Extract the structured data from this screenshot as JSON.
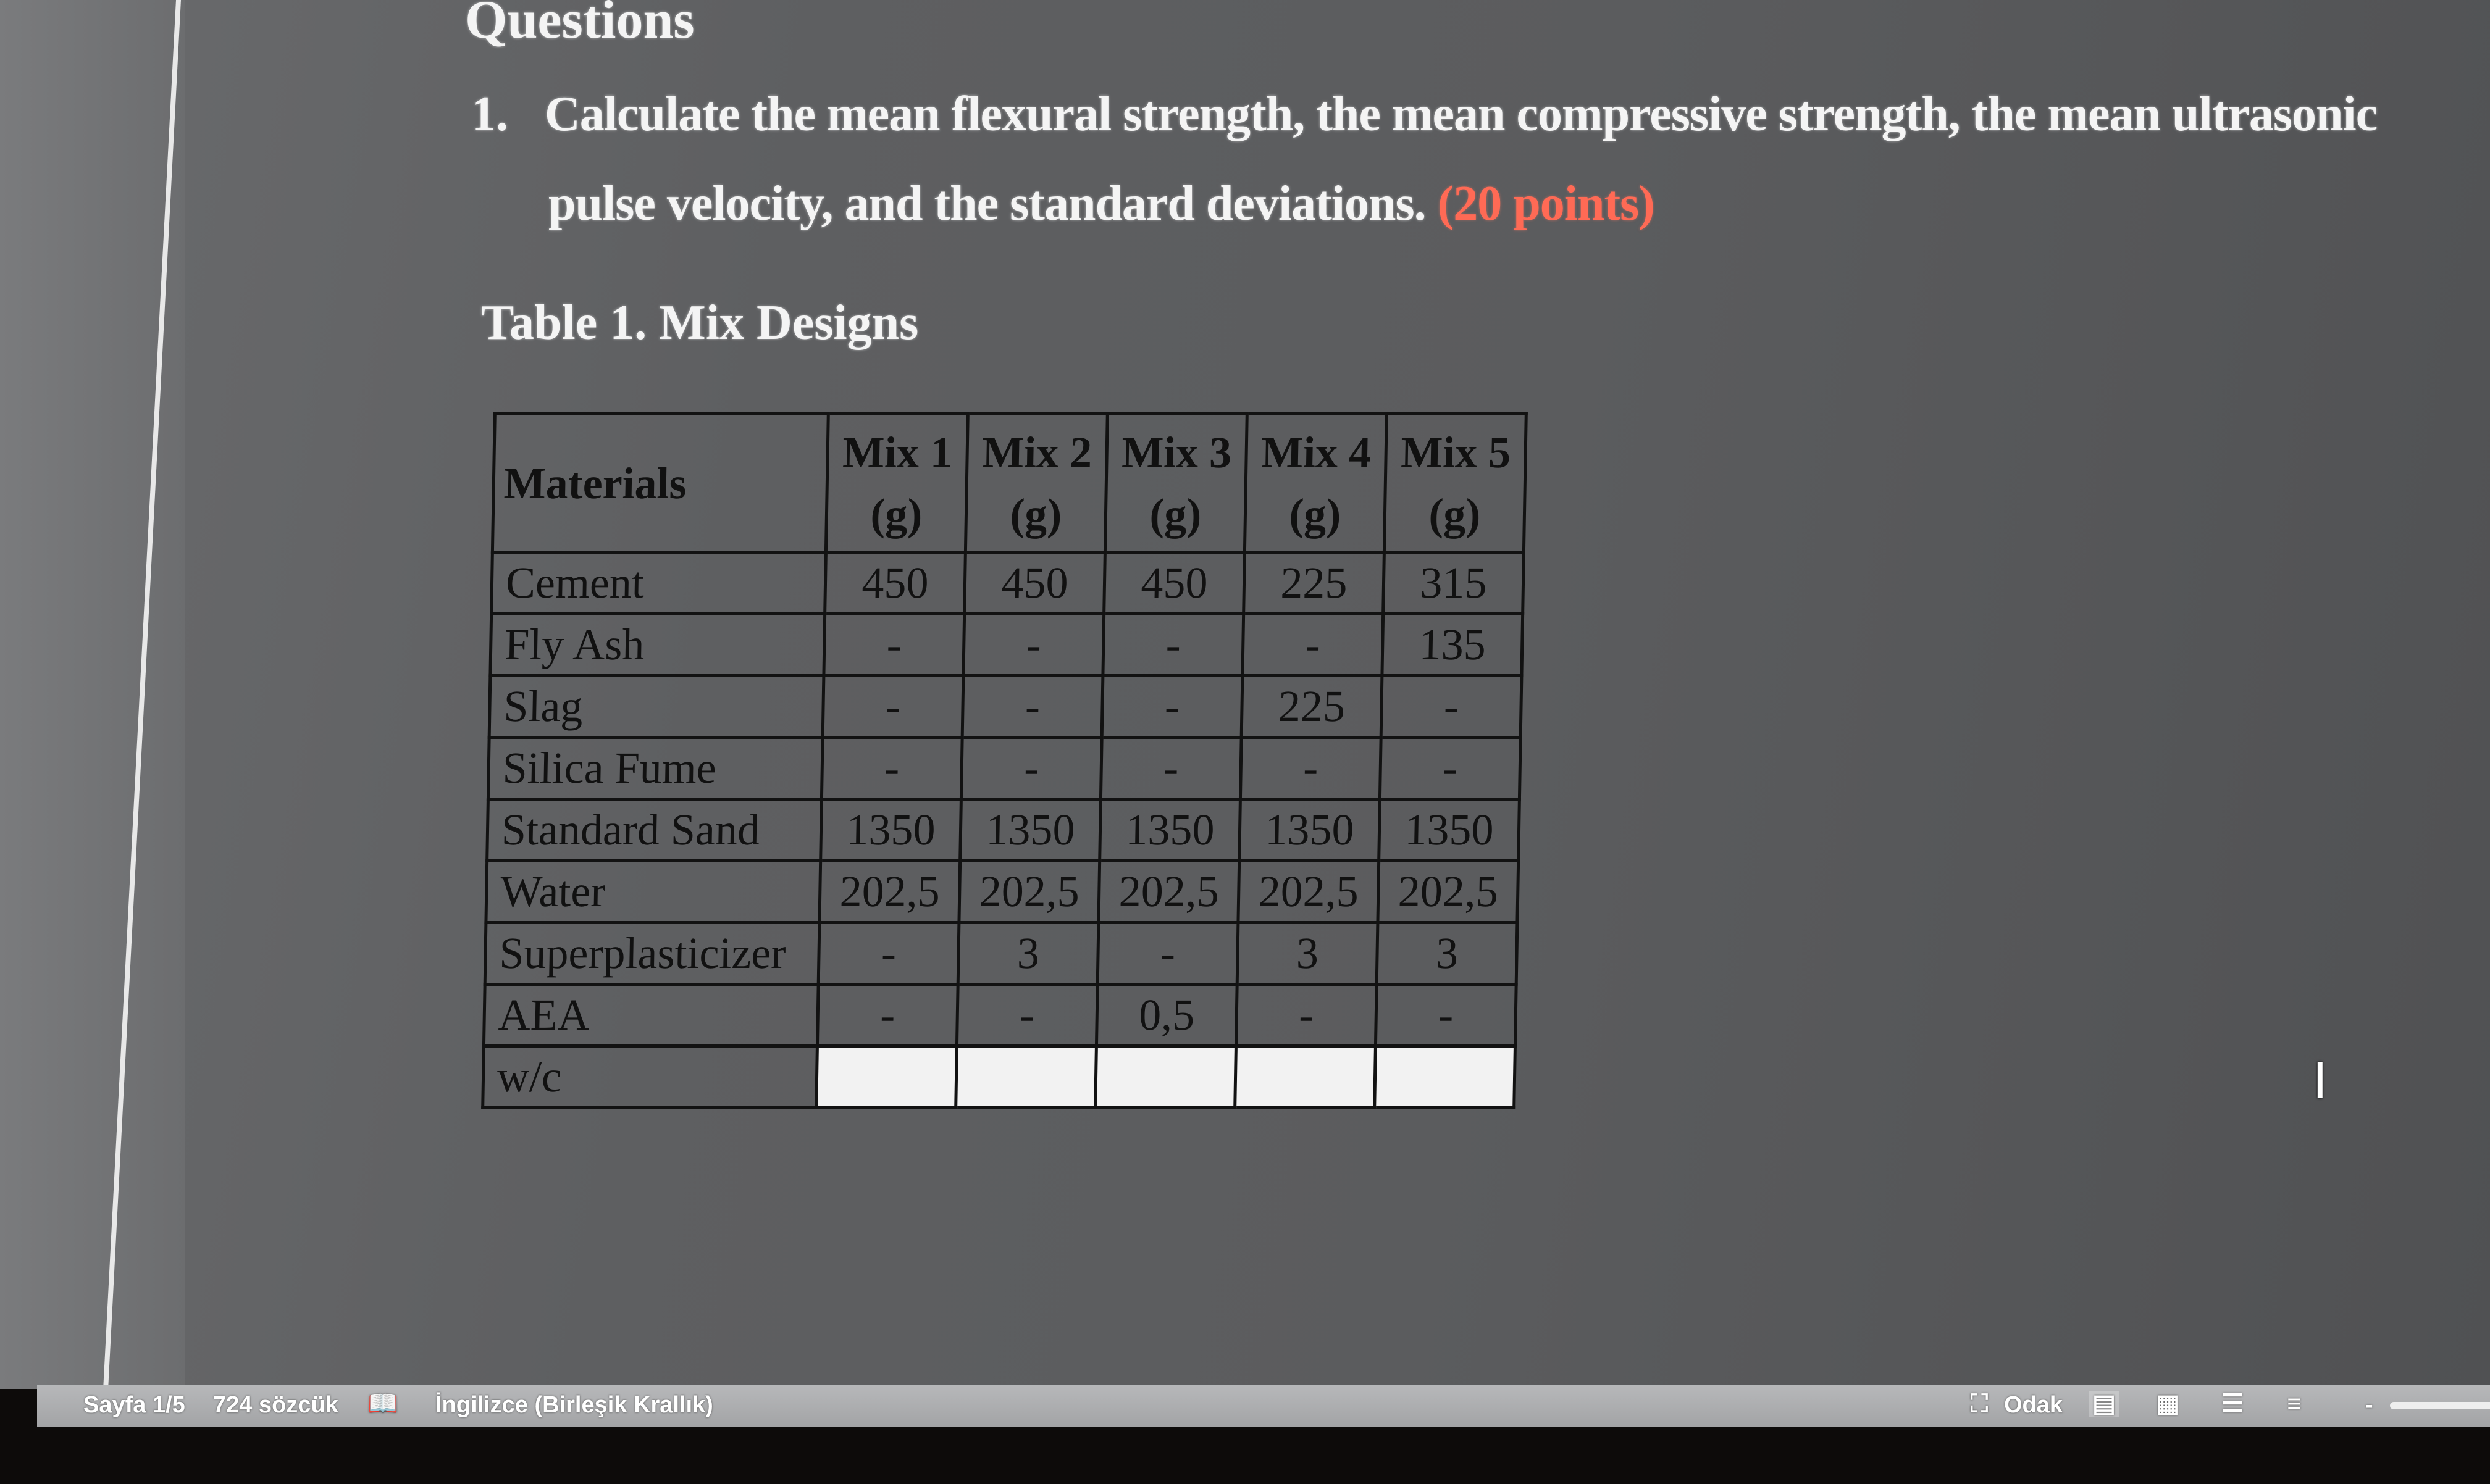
{
  "document": {
    "heading": "Questions",
    "question": {
      "number": "1.",
      "line1": "Calculate the mean flexural strength, the mean compressive strength, the mean ultrasonic",
      "line2": "pulse velocity, and the standard deviations.",
      "points": "(20 points)"
    },
    "table_caption": "Table 1. Mix Designs",
    "table": {
      "headers": [
        "Materials",
        "Mix 1 (g)",
        "Mix 2 (g)",
        "Mix 3 (g)",
        "Mix 4 (g)",
        "Mix 5 (g)"
      ],
      "rows": [
        [
          "Cement",
          "450",
          "450",
          "450",
          "225",
          "315"
        ],
        [
          "Fly Ash",
          "-",
          "-",
          "-",
          "-",
          "135"
        ],
        [
          "Slag",
          "-",
          "-",
          "-",
          "225",
          "-"
        ],
        [
          "Silica Fume",
          "-",
          "-",
          "-",
          "-",
          "-"
        ],
        [
          "Standard Sand",
          "1350",
          "1350",
          "1350",
          "1350",
          "1350"
        ],
        [
          "Water",
          "202,5",
          "202,5",
          "202,5",
          "202,5",
          "202,5"
        ],
        [
          "Superplasticizer",
          "-",
          "3",
          "-",
          "3",
          "3"
        ],
        [
          "AEA",
          "-",
          "-",
          "0,5",
          "-",
          "-"
        ],
        [
          "w/c",
          "",
          "",
          "",
          "",
          ""
        ]
      ]
    }
  },
  "statusbar": {
    "page": "Sayfa 1/5",
    "words": "724 sözcük",
    "proofing_icon": "book-check-icon",
    "language": "İngilizce (Birleşik Krallık)",
    "focus": "Odak",
    "views": [
      "print-layout-icon",
      "web-layout-icon",
      "outline-icon",
      "draft-icon"
    ],
    "zoom_minus": "-"
  },
  "colors": {
    "points": "#ff6a55",
    "statusbar": "#a9aaac"
  }
}
